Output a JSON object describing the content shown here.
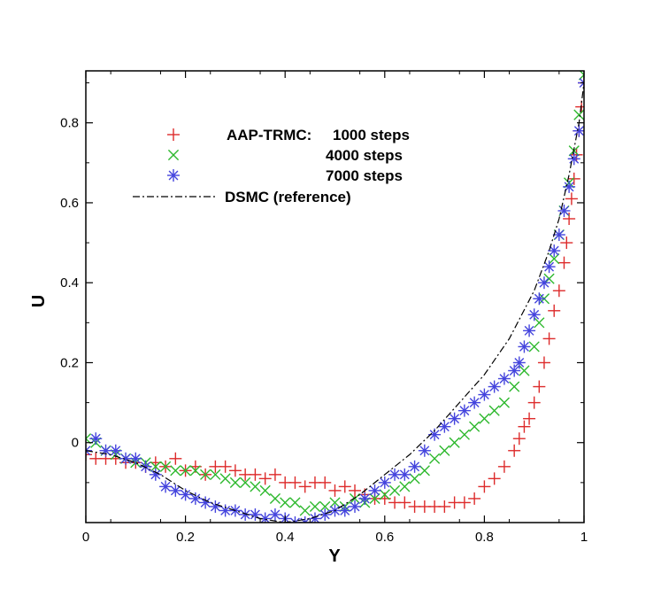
{
  "chart_data": {
    "type": "scatter",
    "title": "",
    "xlabel": "Y",
    "ylabel": "U",
    "xlim": [
      0,
      1
    ],
    "ylim": [
      -0.2,
      0.93
    ],
    "xticks": [
      0,
      0.2,
      0.4,
      0.6,
      0.8,
      1
    ],
    "xtick_labels": [
      "0",
      "0.2",
      "0.4",
      "0.6",
      "0.8",
      "1"
    ],
    "yticks": [
      0,
      0.2,
      0.4,
      0.6,
      0.8
    ],
    "ytick_labels": [
      "0",
      "0.2",
      "0.4",
      "0.6",
      "0.8"
    ],
    "grid": false,
    "legend_position": "upper-left",
    "legend": {
      "prefix": "AAP-TRMC:",
      "entries": [
        "1000 steps",
        "4000 steps",
        "7000 steps",
        "DSMC (reference)"
      ]
    },
    "series": [
      {
        "name": "1000 steps",
        "marker": "plus",
        "color": "#dd2b2b",
        "x": [
          0.0,
          0.02,
          0.04,
          0.06,
          0.08,
          0.1,
          0.12,
          0.14,
          0.16,
          0.18,
          0.2,
          0.22,
          0.24,
          0.26,
          0.28,
          0.3,
          0.32,
          0.34,
          0.36,
          0.38,
          0.4,
          0.42,
          0.44,
          0.46,
          0.48,
          0.5,
          0.52,
          0.54,
          0.56,
          0.58,
          0.6,
          0.62,
          0.64,
          0.66,
          0.68,
          0.7,
          0.72,
          0.74,
          0.76,
          0.78,
          0.8,
          0.82,
          0.84,
          0.86,
          0.87,
          0.88,
          0.89,
          0.9,
          0.91,
          0.92,
          0.93,
          0.94,
          0.95,
          0.96,
          0.965,
          0.97,
          0.975,
          0.98,
          0.985,
          0.99,
          0.995,
          1.0
        ],
        "y": [
          -0.03,
          -0.04,
          -0.04,
          -0.04,
          -0.05,
          -0.05,
          -0.06,
          -0.05,
          -0.06,
          -0.04,
          -0.07,
          -0.06,
          -0.08,
          -0.06,
          -0.06,
          -0.07,
          -0.08,
          -0.08,
          -0.09,
          -0.08,
          -0.1,
          -0.1,
          -0.11,
          -0.1,
          -0.1,
          -0.12,
          -0.11,
          -0.12,
          -0.13,
          -0.14,
          -0.14,
          -0.15,
          -0.15,
          -0.16,
          -0.16,
          -0.16,
          -0.16,
          -0.15,
          -0.15,
          -0.14,
          -0.11,
          -0.09,
          -0.06,
          -0.02,
          0.01,
          0.04,
          0.06,
          0.1,
          0.14,
          0.2,
          0.26,
          0.33,
          0.38,
          0.45,
          0.5,
          0.56,
          0.61,
          0.66,
          0.72,
          0.78,
          0.84,
          0.9
        ]
      },
      {
        "name": "4000 steps",
        "marker": "cross",
        "color": "#2db82d",
        "x": [
          0.0,
          0.02,
          0.04,
          0.06,
          0.08,
          0.1,
          0.12,
          0.14,
          0.16,
          0.18,
          0.2,
          0.22,
          0.24,
          0.26,
          0.28,
          0.3,
          0.32,
          0.34,
          0.36,
          0.38,
          0.4,
          0.42,
          0.44,
          0.46,
          0.48,
          0.5,
          0.52,
          0.54,
          0.56,
          0.58,
          0.6,
          0.62,
          0.64,
          0.66,
          0.68,
          0.7,
          0.72,
          0.74,
          0.76,
          0.78,
          0.8,
          0.82,
          0.84,
          0.86,
          0.88,
          0.9,
          0.91,
          0.92,
          0.93,
          0.94,
          0.95,
          0.96,
          0.97,
          0.98,
          0.99,
          1.0
        ],
        "y": [
          0.01,
          0.0,
          -0.02,
          -0.03,
          -0.04,
          -0.05,
          -0.05,
          -0.06,
          -0.06,
          -0.07,
          -0.07,
          -0.07,
          -0.08,
          -0.08,
          -0.09,
          -0.1,
          -0.1,
          -0.11,
          -0.12,
          -0.14,
          -0.15,
          -0.15,
          -0.17,
          -0.16,
          -0.16,
          -0.15,
          -0.16,
          -0.14,
          -0.15,
          -0.14,
          -0.13,
          -0.12,
          -0.11,
          -0.09,
          -0.07,
          -0.04,
          -0.02,
          0.0,
          0.02,
          0.04,
          0.06,
          0.08,
          0.1,
          0.14,
          0.18,
          0.24,
          0.3,
          0.36,
          0.41,
          0.46,
          0.52,
          0.58,
          0.65,
          0.73,
          0.82,
          0.92
        ]
      },
      {
        "name": "7000 steps",
        "marker": "asterisk",
        "color": "#4444dd",
        "x": [
          0.0,
          0.02,
          0.04,
          0.06,
          0.08,
          0.1,
          0.12,
          0.14,
          0.16,
          0.18,
          0.2,
          0.22,
          0.24,
          0.26,
          0.28,
          0.3,
          0.32,
          0.34,
          0.36,
          0.38,
          0.4,
          0.42,
          0.44,
          0.46,
          0.48,
          0.5,
          0.52,
          0.54,
          0.56,
          0.58,
          0.6,
          0.62,
          0.64,
          0.66,
          0.68,
          0.7,
          0.72,
          0.74,
          0.76,
          0.78,
          0.8,
          0.82,
          0.84,
          0.86,
          0.87,
          0.88,
          0.89,
          0.9,
          0.91,
          0.92,
          0.93,
          0.94,
          0.95,
          0.96,
          0.97,
          0.98,
          0.99,
          1.0
        ],
        "y": [
          -0.02,
          0.01,
          -0.02,
          -0.02,
          -0.04,
          -0.04,
          -0.06,
          -0.08,
          -0.11,
          -0.12,
          -0.13,
          -0.14,
          -0.15,
          -0.16,
          -0.17,
          -0.17,
          -0.18,
          -0.18,
          -0.19,
          -0.18,
          -0.19,
          -0.2,
          -0.2,
          -0.19,
          -0.18,
          -0.17,
          -0.17,
          -0.16,
          -0.14,
          -0.12,
          -0.1,
          -0.08,
          -0.08,
          -0.06,
          -0.02,
          0.02,
          0.04,
          0.06,
          0.08,
          0.1,
          0.12,
          0.14,
          0.16,
          0.18,
          0.2,
          0.24,
          0.28,
          0.32,
          0.36,
          0.4,
          0.44,
          0.48,
          0.52,
          0.58,
          0.64,
          0.71,
          0.78,
          0.9
        ]
      },
      {
        "name": "DSMC (reference)",
        "marker": "none",
        "line": "dash-dot",
        "color": "#000000",
        "x": [
          0.0,
          0.05,
          0.1,
          0.15,
          0.2,
          0.25,
          0.3,
          0.35,
          0.4,
          0.45,
          0.5,
          0.55,
          0.6,
          0.65,
          0.7,
          0.75,
          0.8,
          0.85,
          0.9,
          0.93,
          0.95,
          0.97,
          0.99,
          1.0
        ],
        "y": [
          -0.02,
          -0.03,
          -0.05,
          -0.08,
          -0.12,
          -0.15,
          -0.17,
          -0.19,
          -0.2,
          -0.19,
          -0.17,
          -0.13,
          -0.08,
          -0.03,
          0.03,
          0.1,
          0.17,
          0.26,
          0.38,
          0.48,
          0.56,
          0.67,
          0.8,
          0.9
        ]
      }
    ]
  }
}
